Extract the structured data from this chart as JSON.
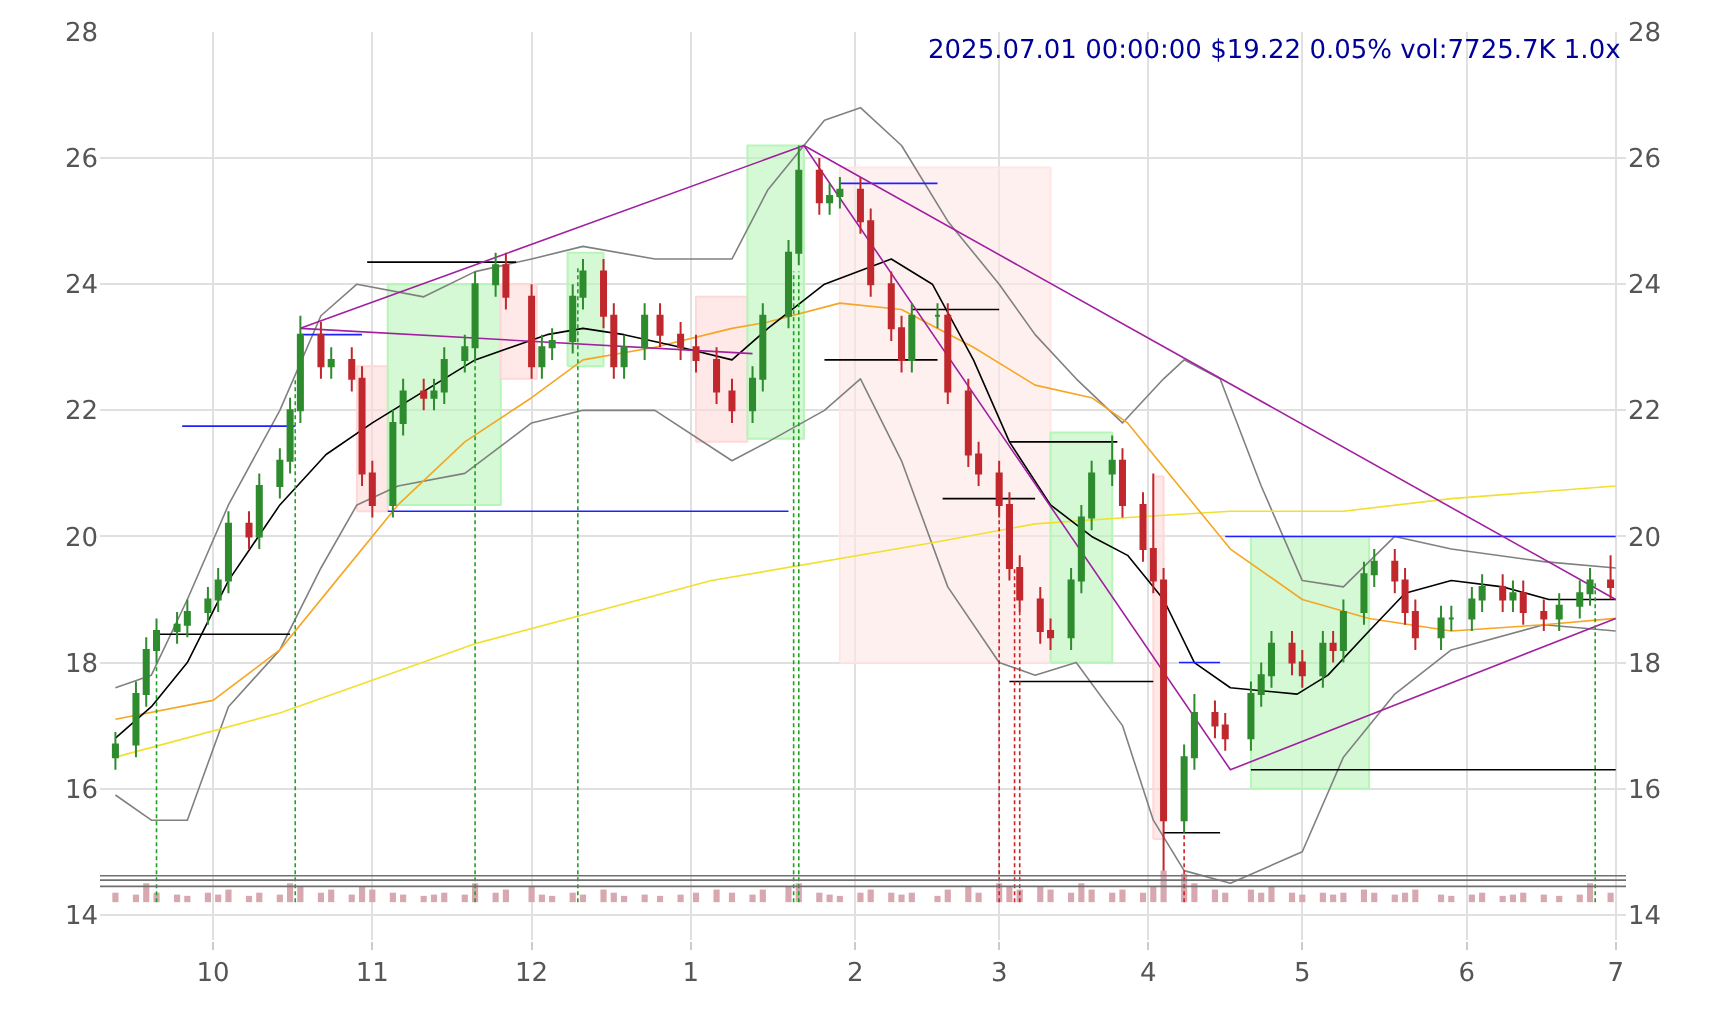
{
  "chart_data": {
    "type": "candlestick",
    "x": [
      "2024-09-12",
      "2024-09-16",
      "2024-09-18",
      "2024-09-20",
      "2024-09-24",
      "2024-09-26",
      "2024-09-30",
      "2024-10-02",
      "2024-10-04",
      "2024-10-08",
      "2024-10-10",
      "2024-10-14",
      "2024-10-16",
      "2024-10-18",
      "2024-10-22",
      "2024-10-24",
      "2024-10-28",
      "2024-10-30",
      "2024-11-01",
      "2024-11-05",
      "2024-11-07",
      "2024-11-11",
      "2024-11-13",
      "2024-11-15",
      "2024-11-19",
      "2024-11-21",
      "2024-11-25",
      "2024-11-27",
      "2024-12-02",
      "2024-12-04",
      "2024-12-06",
      "2024-12-10",
      "2024-12-12",
      "2024-12-16",
      "2024-12-18",
      "2024-12-20",
      "2024-12-24",
      "2024-12-27",
      "2024-12-31",
      "2025-01-03",
      "2025-01-07",
      "2025-01-10",
      "2025-01-14",
      "2025-01-16",
      "2025-01-21",
      "2025-01-23",
      "2025-01-27",
      "2025-01-29",
      "2025-01-31",
      "2025-02-04",
      "2025-02-06",
      "2025-02-10",
      "2025-02-12",
      "2025-02-14",
      "2025-02-19",
      "2025-02-21",
      "2025-02-25",
      "2025-02-27",
      "2025-03-03",
      "2025-03-05",
      "2025-03-07",
      "2025-03-11",
      "2025-03-13",
      "2025-03-17",
      "2025-03-19",
      "2025-03-21",
      "2025-03-25",
      "2025-03-27",
      "2025-03-31",
      "2025-04-02",
      "2025-04-04",
      "2025-04-08",
      "2025-04-10",
      "2025-04-14",
      "2025-04-16",
      "2025-04-21",
      "2025-04-23",
      "2025-04-25",
      "2025-04-29",
      "2025-05-01",
      "2025-05-05",
      "2025-05-07",
      "2025-05-09",
      "2025-05-13",
      "2025-05-15",
      "2025-05-19",
      "2025-05-21",
      "2025-05-23",
      "2025-05-28",
      "2025-05-30",
      "2025-06-03",
      "2025-06-05",
      "2025-06-09",
      "2025-06-11",
      "2025-06-13",
      "2025-06-17",
      "2025-06-20",
      "2025-06-24",
      "2025-06-26",
      "2025-06-30"
    ],
    "ohlc": [
      [
        16.5,
        16.9,
        16.3,
        16.7
      ],
      [
        16.7,
        17.7,
        16.5,
        17.5
      ],
      [
        17.5,
        18.4,
        17.3,
        18.2
      ],
      [
        18.2,
        18.7,
        18.0,
        18.5
      ],
      [
        18.5,
        18.8,
        18.3,
        18.6
      ],
      [
        18.6,
        19.0,
        18.4,
        18.8
      ],
      [
        18.8,
        19.2,
        18.6,
        19.0
      ],
      [
        19.0,
        19.5,
        18.8,
        19.3
      ],
      [
        19.3,
        20.4,
        19.1,
        20.2
      ],
      [
        20.2,
        20.4,
        19.8,
        20.0
      ],
      [
        20.0,
        21.0,
        19.8,
        20.8
      ],
      [
        20.8,
        21.4,
        20.6,
        21.2
      ],
      [
        21.2,
        22.2,
        21.0,
        22.0
      ],
      [
        22.0,
        23.5,
        21.8,
        23.2
      ],
      [
        23.2,
        23.4,
        22.5,
        22.7
      ],
      [
        22.7,
        23.0,
        22.5,
        22.8
      ],
      [
        22.8,
        23.0,
        22.3,
        22.5
      ],
      [
        22.5,
        22.7,
        20.8,
        21.0
      ],
      [
        21.0,
        21.2,
        20.3,
        20.5
      ],
      [
        20.5,
        22.0,
        20.3,
        21.8
      ],
      [
        21.8,
        22.5,
        21.6,
        22.3
      ],
      [
        22.3,
        22.5,
        22.0,
        22.2
      ],
      [
        22.2,
        22.5,
        22.0,
        22.3
      ],
      [
        22.3,
        23.0,
        22.1,
        22.8
      ],
      [
        22.8,
        23.2,
        22.6,
        23.0
      ],
      [
        23.0,
        24.2,
        22.8,
        24.0
      ],
      [
        24.0,
        24.5,
        23.8,
        24.3
      ],
      [
        24.3,
        24.5,
        23.6,
        23.8
      ],
      [
        23.8,
        24.0,
        22.5,
        22.7
      ],
      [
        22.7,
        23.2,
        22.5,
        23.0
      ],
      [
        23.0,
        23.3,
        22.8,
        23.1
      ],
      [
        23.1,
        24.0,
        22.9,
        23.8
      ],
      [
        23.8,
        24.4,
        23.6,
        24.2
      ],
      [
        24.2,
        24.4,
        23.3,
        23.5
      ],
      [
        23.5,
        23.7,
        22.5,
        22.7
      ],
      [
        22.7,
        23.2,
        22.5,
        23.0
      ],
      [
        23.0,
        23.7,
        22.8,
        23.5
      ],
      [
        23.5,
        23.7,
        23.0,
        23.2
      ],
      [
        23.2,
        23.4,
        22.8,
        23.0
      ],
      [
        23.0,
        23.2,
        22.6,
        22.8
      ],
      [
        22.8,
        23.0,
        22.1,
        22.3
      ],
      [
        22.3,
        22.5,
        21.8,
        22.0
      ],
      [
        22.0,
        22.7,
        21.8,
        22.5
      ],
      [
        22.5,
        23.7,
        22.3,
        23.5
      ],
      [
        23.5,
        24.7,
        23.3,
        24.5
      ],
      [
        24.5,
        26.2,
        24.3,
        25.8
      ],
      [
        25.8,
        26.0,
        25.1,
        25.3
      ],
      [
        25.3,
        25.6,
        25.1,
        25.4
      ],
      [
        25.4,
        25.7,
        25.2,
        25.5
      ],
      [
        25.5,
        25.7,
        24.8,
        25.0
      ],
      [
        25.0,
        25.2,
        23.8,
        24.0
      ],
      [
        24.0,
        24.2,
        23.1,
        23.3
      ],
      [
        23.3,
        23.5,
        22.6,
        22.8
      ],
      [
        22.8,
        23.7,
        22.6,
        23.5
      ],
      [
        23.5,
        23.7,
        23.3,
        23.5
      ],
      [
        23.5,
        23.7,
        22.1,
        22.3
      ],
      [
        22.3,
        22.5,
        21.1,
        21.3
      ],
      [
        21.3,
        21.5,
        20.8,
        21.0
      ],
      [
        21.0,
        21.2,
        20.3,
        20.5
      ],
      [
        20.5,
        20.7,
        19.3,
        19.5
      ],
      [
        19.5,
        19.7,
        18.8,
        19.0
      ],
      [
        19.0,
        19.2,
        18.3,
        18.5
      ],
      [
        18.5,
        18.7,
        18.2,
        18.4
      ],
      [
        18.4,
        19.5,
        18.2,
        19.3
      ],
      [
        19.3,
        20.5,
        19.1,
        20.3
      ],
      [
        20.3,
        21.2,
        20.1,
        21.0
      ],
      [
        21.0,
        21.6,
        20.8,
        21.2
      ],
      [
        21.2,
        21.4,
        20.3,
        20.5
      ],
      [
        20.5,
        20.7,
        19.6,
        19.8
      ],
      [
        19.8,
        21.0,
        19.1,
        19.3
      ],
      [
        19.3,
        19.5,
        14.7,
        15.5
      ],
      [
        15.5,
        16.7,
        15.3,
        16.5
      ],
      [
        16.5,
        17.5,
        16.3,
        17.2
      ],
      [
        17.2,
        17.4,
        16.8,
        17.0
      ],
      [
        17.0,
        17.2,
        16.6,
        16.8
      ],
      [
        16.8,
        17.7,
        16.6,
        17.5
      ],
      [
        17.5,
        18.0,
        17.3,
        17.8
      ],
      [
        17.8,
        18.5,
        17.6,
        18.3
      ],
      [
        18.3,
        18.5,
        17.8,
        18.0
      ],
      [
        18.0,
        18.2,
        17.6,
        17.8
      ],
      [
        17.8,
        18.5,
        17.6,
        18.3
      ],
      [
        18.3,
        18.5,
        18.0,
        18.2
      ],
      [
        18.2,
        19.0,
        18.0,
        18.8
      ],
      [
        18.8,
        19.6,
        18.6,
        19.4
      ],
      [
        19.4,
        19.8,
        19.2,
        19.6
      ],
      [
        19.6,
        19.8,
        19.1,
        19.3
      ],
      [
        19.3,
        19.5,
        18.6,
        18.8
      ],
      [
        18.8,
        19.0,
        18.2,
        18.4
      ],
      [
        18.4,
        18.9,
        18.2,
        18.7
      ],
      [
        18.7,
        18.9,
        18.5,
        18.7
      ],
      [
        18.7,
        19.2,
        18.5,
        19.0
      ],
      [
        19.0,
        19.4,
        18.8,
        19.2
      ],
      [
        19.2,
        19.4,
        18.8,
        19.0
      ],
      [
        19.0,
        19.3,
        18.8,
        19.1
      ],
      [
        19.1,
        19.3,
        18.6,
        18.8
      ],
      [
        18.8,
        19.0,
        18.5,
        18.7
      ],
      [
        18.7,
        19.1,
        18.5,
        18.9
      ],
      [
        18.9,
        19.3,
        18.7,
        19.1
      ],
      [
        19.1,
        19.5,
        18.9,
        19.3
      ],
      [
        19.3,
        19.7,
        19.0,
        19.2
      ]
    ],
    "series": [
      {
        "type": "area",
        "color": "#ffd8d8",
        "x": [
          "2024-10-29",
          "2024-11-04",
          "2024-11-04",
          "2024-10-29",
          "2024-10-29"
        ],
        "values": [
          20.4,
          20.4,
          22.7,
          22.7,
          20.4
        ]
      },
      {
        "type": "area",
        "color": "#b8f5b8",
        "x": [
          "2024-11-04",
          "2024-11-26",
          "2024-11-26",
          "2024-11-04",
          "2024-11-04"
        ],
        "values": [
          20.5,
          20.5,
          24.0,
          24.0,
          20.5
        ]
      },
      {
        "type": "area",
        "color": "#ffd8d8",
        "x": [
          "2024-11-26",
          "2024-12-03",
          "2024-12-03",
          "2024-11-26",
          "2024-11-26"
        ],
        "values": [
          22.5,
          22.5,
          24.0,
          24.0,
          22.5
        ]
      },
      {
        "type": "area",
        "color": "#b8f5b8",
        "x": [
          "2024-12-09",
          "2024-12-16",
          "2024-12-16",
          "2024-12-09",
          "2024-12-09"
        ],
        "values": [
          22.7,
          22.7,
          24.5,
          24.5,
          22.7
        ]
      },
      {
        "type": "area",
        "color": "#ffd8d8",
        "x": [
          "2025-01-03",
          "2025-01-13",
          "2025-01-13",
          "2025-01-03",
          "2025-01-03"
        ],
        "values": [
          21.5,
          21.5,
          23.8,
          23.8,
          21.5
        ]
      },
      {
        "type": "area",
        "color": "#b8f5b8",
        "x": [
          "2025-01-13",
          "2025-01-24",
          "2025-01-24",
          "2025-01-13",
          "2025-01-13"
        ],
        "values": [
          21.55,
          21.55,
          26.2,
          26.2,
          21.55
        ]
      },
      {
        "type": "area",
        "color": "#ffe6e6",
        "x": [
          "2025-01-31",
          "2025-03-13",
          "2025-03-13",
          "2025-01-31",
          "2025-01-31"
        ],
        "values": [
          18.0,
          18.0,
          25.85,
          25.85,
          18.0
        ]
      },
      {
        "type": "area",
        "color": "#b8f5b8",
        "x": [
          "2025-03-13",
          "2025-03-25",
          "2025-03-25",
          "2025-03-13",
          "2025-03-13"
        ],
        "values": [
          18.0,
          18.0,
          21.65,
          21.65,
          18.0
        ]
      },
      {
        "type": "area",
        "color": "#ffd8d8",
        "x": [
          "2025-04-02",
          "2025-04-04",
          "2025-04-04",
          "2025-04-02",
          "2025-04-02"
        ],
        "values": [
          15.2,
          15.2,
          20.95,
          20.95,
          15.2
        ]
      },
      {
        "type": "area",
        "color": "#b8f5b8",
        "x": [
          "2025-04-21",
          "2025-05-14",
          "2025-05-14",
          "2025-04-21",
          "2025-04-21"
        ],
        "values": [
          16.0,
          16.0,
          20.0,
          20.0,
          16.0
        ]
      },
      {
        "type": "bar",
        "color": "#d8a8b0",
        "base": [
          14.2,
          14.2,
          14.2,
          14.2,
          14.2,
          14.2,
          14.2,
          14.2,
          14.2,
          14.2,
          14.2,
          14.2,
          14.2,
          14.2,
          14.2,
          14.2,
          14.2,
          14.2,
          14.2,
          14.2,
          14.2,
          14.2,
          14.2,
          14.2,
          14.2,
          14.2,
          14.2,
          14.2,
          14.2,
          14.2,
          14.2,
          14.2,
          14.2,
          14.2,
          14.2,
          14.2,
          14.2,
          14.2,
          14.2,
          14.2,
          14.2,
          14.2,
          14.2,
          14.2,
          14.2,
          14.2,
          14.2,
          14.2,
          14.2,
          14.2,
          14.2,
          14.2,
          14.2,
          14.2,
          14.2,
          14.2,
          14.2,
          14.2,
          14.2,
          14.2,
          14.2,
          14.2,
          14.2,
          14.2,
          14.2,
          14.2,
          14.2,
          14.2,
          14.2,
          14.2,
          14.2,
          14.2,
          14.2,
          14.2,
          14.2,
          14.2,
          14.2,
          14.2,
          14.2,
          14.2,
          14.2,
          14.2,
          14.2,
          14.2,
          14.2,
          14.2,
          14.2,
          14.2,
          14.2,
          14.2,
          14.2,
          14.2,
          14.2,
          14.2,
          14.2,
          14.2,
          14.2,
          14.2,
          14.2,
          14.2
        ],
        "values": [
          0.15,
          0.12,
          0.3,
          0.15,
          0.12,
          0.1,
          0.15,
          0.12,
          0.2,
          0.1,
          0.15,
          0.12,
          0.3,
          0.25,
          0.15,
          0.2,
          0.12,
          0.25,
          0.2,
          0.15,
          0.12,
          0.1,
          0.12,
          0.15,
          0.12,
          0.3,
          0.15,
          0.2,
          0.25,
          0.12,
          0.1,
          0.15,
          0.12,
          0.2,
          0.15,
          0.1,
          0.12,
          0.1,
          0.12,
          0.15,
          0.2,
          0.15,
          0.12,
          0.2,
          0.25,
          0.3,
          0.15,
          0.12,
          0.1,
          0.15,
          0.2,
          0.15,
          0.12,
          0.15,
          0.1,
          0.2,
          0.25,
          0.15,
          0.3,
          0.25,
          0.2,
          0.25,
          0.2,
          0.15,
          0.3,
          0.2,
          0.15,
          0.2,
          0.15,
          0.25,
          0.5,
          0.45,
          0.3,
          0.2,
          0.15,
          0.2,
          0.15,
          0.25,
          0.15,
          0.12,
          0.15,
          0.12,
          0.15,
          0.2,
          0.15,
          0.12,
          0.15,
          0.2,
          0.12,
          0.1,
          0.12,
          0.15,
          0.1,
          0.12,
          0.15,
          0.12,
          0.1,
          0.12,
          0.3,
          0.15
        ]
      },
      {
        "type": "line",
        "color": "#808080",
        "x": [
          "2024-09-12",
          "2024-09-19",
          "2024-09-26",
          "2024-10-04",
          "2024-10-14",
          "2024-10-22",
          "2024-10-29",
          "2024-11-11",
          "2024-11-21",
          "2024-12-02",
          "2024-12-12",
          "2024-12-26",
          "2025-01-10",
          "2025-01-17",
          "2025-01-28",
          "2025-02-04",
          "2025-02-12",
          "2025-02-21",
          "2025-03-03",
          "2025-03-10",
          "2025-03-18",
          "2025-03-27",
          "2025-04-04",
          "2025-04-08",
          "2025-04-15",
          "2025-04-23",
          "2025-05-01",
          "2025-05-09",
          "2025-05-19",
          "2025-05-30",
          "2025-06-17",
          "2025-07-01"
        ],
        "values": [
          17.6,
          17.8,
          19.0,
          20.5,
          22.0,
          23.5,
          24.0,
          23.8,
          24.2,
          24.4,
          24.6,
          24.4,
          24.4,
          25.5,
          26.6,
          26.8,
          26.2,
          25.0,
          24.0,
          23.2,
          22.5,
          21.8,
          22.5,
          22.8,
          22.5,
          20.8,
          19.3,
          19.2,
          20.0,
          19.8,
          19.6,
          19.5
        ]
      },
      {
        "type": "line",
        "color": "#808080",
        "x": [
          "2024-09-12",
          "2024-09-19",
          "2024-09-26",
          "2024-10-04",
          "2024-10-14",
          "2024-10-22",
          "2024-10-29",
          "2024-11-06",
          "2024-11-19",
          "2024-12-02",
          "2024-12-12",
          "2024-12-26",
          "2025-01-10",
          "2025-01-17",
          "2025-01-28",
          "2025-02-04",
          "2025-02-12",
          "2025-02-21",
          "2025-03-03",
          "2025-03-10",
          "2025-03-18",
          "2025-03-27",
          "2025-04-02",
          "2025-04-08",
          "2025-04-17",
          "2025-05-01",
          "2025-05-09",
          "2025-05-19",
          "2025-05-30",
          "2025-06-17",
          "2025-07-01"
        ],
        "values": [
          15.9,
          15.5,
          15.5,
          17.3,
          18.2,
          19.5,
          20.5,
          20.8,
          21.0,
          21.8,
          22.0,
          22.0,
          21.2,
          21.5,
          22.0,
          22.5,
          21.2,
          19.2,
          18.0,
          17.8,
          18.0,
          17.0,
          15.5,
          14.7,
          14.5,
          15.0,
          16.5,
          17.5,
          18.2,
          18.6,
          18.5
        ]
      },
      {
        "type": "line",
        "color": "#f0e030",
        "x": [
          "2024-09-12",
          "2024-10-14",
          "2024-11-21",
          "2025-01-06",
          "2025-02-18",
          "2025-03-10",
          "2025-03-28",
          "2025-04-17",
          "2025-05-09",
          "2025-05-30",
          "2025-07-01"
        ],
        "values": [
          16.5,
          17.2,
          18.3,
          19.3,
          19.9,
          20.2,
          20.3,
          20.4,
          20.4,
          20.6,
          20.8
        ]
      },
      {
        "type": "line",
        "color": "#f5a623",
        "x": [
          "2024-09-12",
          "2024-10-01",
          "2024-10-14",
          "2024-10-24",
          "2024-11-06",
          "2024-11-19",
          "2024-12-02",
          "2024-12-12",
          "2024-12-26",
          "2025-01-10",
          "2025-01-17",
          "2025-01-31",
          "2025-02-12",
          "2025-02-26",
          "2025-03-10",
          "2025-03-21",
          "2025-03-28",
          "2025-04-07",
          "2025-04-17",
          "2025-05-01",
          "2025-05-14",
          "2025-05-30",
          "2025-06-17",
          "2025-07-01"
        ],
        "values": [
          17.1,
          17.4,
          18.2,
          19.2,
          20.5,
          21.5,
          22.2,
          22.8,
          23.0,
          23.3,
          23.4,
          23.7,
          23.6,
          23.0,
          22.4,
          22.2,
          21.8,
          20.8,
          19.8,
          19.0,
          18.7,
          18.5,
          18.6,
          18.7
        ]
      },
      {
        "type": "line",
        "color": "#000000",
        "x": [
          "2024-09-12",
          "2024-09-19",
          "2024-09-26",
          "2024-10-04",
          "2024-10-14",
          "2024-10-23",
          "2024-11-01",
          "2024-11-11",
          "2024-11-21",
          "2024-12-05",
          "2024-12-12",
          "2024-12-20",
          "2024-12-31",
          "2025-01-10",
          "2025-01-17",
          "2025-01-28",
          "2025-02-10",
          "2025-02-18",
          "2025-02-26",
          "2025-03-05",
          "2025-03-13",
          "2025-03-21",
          "2025-03-28",
          "2025-04-04",
          "2025-04-10",
          "2025-04-17",
          "2025-04-30",
          "2025-05-06",
          "2025-05-14",
          "2025-05-21",
          "2025-05-30",
          "2025-06-09",
          "2025-06-18",
          "2025-07-01"
        ],
        "values": [
          16.8,
          17.3,
          18.0,
          19.3,
          20.5,
          21.3,
          21.8,
          22.3,
          22.8,
          23.2,
          23.3,
          23.2,
          23.0,
          22.8,
          23.3,
          24.0,
          24.4,
          24.0,
          22.8,
          21.5,
          20.5,
          20.0,
          19.7,
          19.0,
          18.0,
          17.6,
          17.5,
          17.8,
          18.5,
          19.1,
          19.3,
          19.2,
          19.0,
          19.0
        ]
      },
      {
        "type": "line",
        "color": "#2020ff",
        "x": [
          "2024-09-25",
          "2024-10-17",
          null,
          "2024-10-18",
          "2024-10-30",
          null,
          "2024-11-04",
          "2025-01-21",
          null,
          "2025-01-31",
          "2025-02-19",
          null,
          "2025-04-07",
          "2025-04-15",
          null,
          "2025-04-16",
          "2025-07-01"
        ],
        "values": [
          21.75,
          21.75,
          null,
          23.2,
          23.2,
          null,
          20.4,
          20.4,
          null,
          25.6,
          25.6,
          null,
          18.0,
          18.0,
          null,
          20.0,
          20.0
        ]
      },
      {
        "type": "line",
        "color": "#000000",
        "x": [
          "2024-09-20",
          "2024-10-16",
          null,
          "2024-10-31",
          "2024-11-29",
          null,
          "2025-01-28",
          "2025-02-19",
          null,
          "2025-02-14",
          "2025-03-03",
          null,
          "2025-02-20",
          "2025-03-10",
          null,
          "2025-03-05",
          "2025-03-26",
          null,
          "2025-03-05",
          "2025-04-02",
          null,
          "2025-04-04",
          "2025-04-15",
          null,
          "2025-04-21",
          "2025-07-01"
        ],
        "values": [
          18.45,
          18.45,
          null,
          24.35,
          24.35,
          null,
          22.8,
          22.8,
          null,
          23.6,
          23.6,
          null,
          20.6,
          20.6,
          null,
          21.5,
          21.5,
          null,
          17.7,
          17.7,
          null,
          15.3,
          15.3,
          null,
          16.3,
          16.3
        ]
      },
      {
        "type": "line",
        "color": "#a020a0",
        "x": [
          "2024-10-18",
          "2025-01-24",
          "2025-04-17",
          "2025-07-01",
          null,
          "2024-10-18",
          "2025-01-14",
          null,
          "2025-01-24",
          "2025-07-01"
        ],
        "values": [
          23.3,
          26.2,
          16.3,
          18.7,
          null,
          23.3,
          22.9,
          null,
          26.2,
          19.0
        ]
      },
      {
        "type": "line",
        "color": "#20a020",
        "line_style": "dotted",
        "x": [
          "2024-09-20",
          "2024-09-20",
          null,
          "2024-10-17",
          "2024-10-17",
          null,
          "2024-11-21",
          "2024-11-21",
          null,
          "2024-12-11",
          "2024-12-11",
          null,
          "2025-01-22",
          "2025-01-22",
          null,
          "2025-01-23",
          "2025-01-23",
          null,
          "2025-06-27",
          "2025-06-27"
        ],
        "values": [
          14.2,
          18.0,
          null,
          14.2,
          22.5,
          null,
          14.2,
          22.8,
          null,
          14.2,
          24.3,
          null,
          14.2,
          24.2,
          null,
          14.2,
          24.2,
          null,
          14.2,
          19.3
        ]
      },
      {
        "type": "line",
        "color": "#d02020",
        "line_style": "dotted",
        "x": [
          "2025-03-03",
          "2025-03-03",
          null,
          "2025-03-06",
          "2025-03-06",
          null,
          "2025-03-07",
          "2025-03-07",
          null,
          "2025-04-08",
          "2025-04-08"
        ],
        "values": [
          14.2,
          20.3,
          null,
          14.2,
          19.5,
          null,
          14.2,
          18.8,
          null,
          14.2,
          15.3
        ]
      }
    ],
    "ref_lines": [
      {
        "axis": "y",
        "value": 14.45,
        "color": "#707070"
      },
      {
        "axis": "y",
        "value": 14.55,
        "color": "#707070"
      },
      {
        "axis": "y",
        "value": 14.62,
        "color": "#707070"
      }
    ],
    "annotations": [
      "2025.07.01 00:00:00 $19.22 0.05% vol:7725.7K 1.0x"
    ],
    "xlim": [
      "2024-09-09",
      "2025-07-03"
    ],
    "xticks": [
      {
        "value": "2024-10-01",
        "label": "10"
      },
      {
        "value": "2024-11-01",
        "label": "11"
      },
      {
        "value": "2024-12-02",
        "label": "12"
      },
      {
        "value": "2025-01-02",
        "label": "1"
      },
      {
        "value": "2025-02-03",
        "label": "2"
      },
      {
        "value": "2025-03-03",
        "label": "3"
      },
      {
        "value": "2025-04-01",
        "label": "4"
      },
      {
        "value": "2025-05-01",
        "label": "5"
      },
      {
        "value": "2025-06-02",
        "label": "6"
      },
      {
        "value": "2025-07-01",
        "label": "7"
      }
    ],
    "ylim": [
      13.6,
      28
    ],
    "yticks": [
      14,
      16,
      18,
      20,
      22,
      24,
      26,
      28
    ],
    "y2lim": [
      13.6,
      28
    ],
    "y2ticks": [
      14,
      16,
      18,
      20,
      22,
      24,
      26,
      28
    ],
    "grid": true
  }
}
